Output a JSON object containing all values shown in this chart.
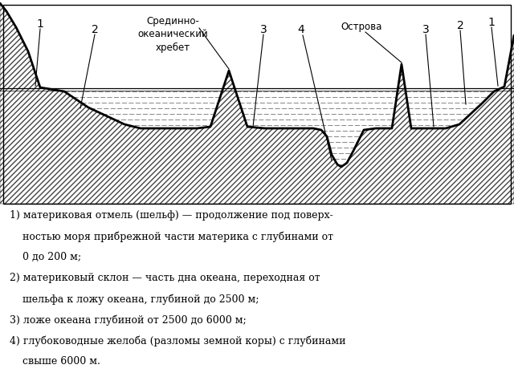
{
  "bg_color": "#ffffff",
  "title_ridge": "Срединно-\nокеанический\nхребет",
  "label_islands": "Острова",
  "legend_lines": [
    "1) материковая отмель (шельф) — продолжение под поверх-",
    "    ностью моря прибрежной части материка с глубинами от",
    "    0 до 200 м;",
    "2) материковый склон — часть дна океана, переходная от",
    "    шельфа к ложу океана, глубиной до 2500 м;",
    "3) ложе океана глубиной от 2500 до 6000 м;",
    "4) глубоководные желоба (разломы земной коры) с глубинами",
    "    свыше 6000 м."
  ]
}
